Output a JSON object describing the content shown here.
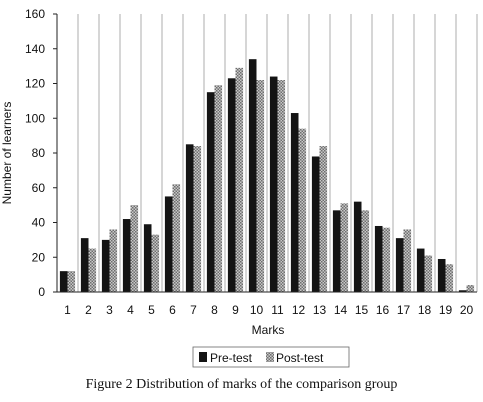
{
  "caption": "Figure 2 Distribution of marks of the comparison group",
  "chart_data": {
    "type": "bar",
    "xlabel": "Marks",
    "ylabel": "Number of learners",
    "ylim": [
      0,
      160
    ],
    "yticks": [
      "0",
      "20",
      "40",
      "60",
      "80",
      "100",
      "120",
      "140",
      "160"
    ],
    "grid": "vertical",
    "legend_position": "bottom",
    "categories": [
      "1",
      "2",
      "3",
      "4",
      "5",
      "6",
      "7",
      "8",
      "9",
      "10",
      "11",
      "12",
      "13",
      "14",
      "15",
      "16",
      "17",
      "18",
      "19",
      "20"
    ],
    "series": [
      {
        "name": "Pre-test",
        "color": "#141414",
        "pattern": "solid",
        "values": [
          12,
          31,
          30,
          42,
          39,
          55,
          85,
          115,
          123,
          134,
          124,
          103,
          78,
          47,
          52,
          38,
          31,
          25,
          19,
          1
        ]
      },
      {
        "name": "Post-test",
        "color": "#9a9a9a",
        "pattern": "checkered",
        "values": [
          12,
          25,
          36,
          50,
          33,
          62,
          84,
          119,
          129,
          122,
          122,
          94,
          84,
          51,
          47,
          37,
          36,
          21,
          16,
          4
        ]
      }
    ]
  }
}
